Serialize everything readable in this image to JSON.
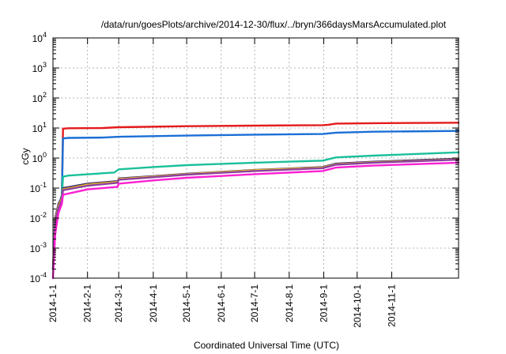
{
  "chart_data": {
    "type": "line",
    "title": "/data/run/goesPlots/archive/2014-12-30/flux/../bryn/366daysMarsAccumulated.plot",
    "xlabel": "Coordinated Universal Time (UTC)",
    "ylabel": "cGy",
    "xlim": [
      "2014-01-01",
      "2014-12-31"
    ],
    "ylim": [
      0.0001,
      10000
    ],
    "yscale": "log",
    "grid": true,
    "x_ticks": [
      "2014-1-1",
      "2014-2-1",
      "2014-3-1",
      "2014-4-1",
      "2014-5-1",
      "2014-6-1",
      "2014-7-1",
      "2014-8-1",
      "2014-9-1",
      "2014-10-1",
      "2014-11-1"
    ],
    "y_ticks": [
      {
        "value": 0.0001,
        "base": "10",
        "exp": "-4"
      },
      {
        "value": 0.001,
        "base": "10",
        "exp": "-3"
      },
      {
        "value": 0.01,
        "base": "10",
        "exp": "-2"
      },
      {
        "value": 0.1,
        "base": "10",
        "exp": "-1"
      },
      {
        "value": 1,
        "base": "10",
        "exp": "0"
      },
      {
        "value": 10,
        "base": "10",
        "exp": "1"
      },
      {
        "value": 100,
        "base": "10",
        "exp": "2"
      },
      {
        "value": 1000,
        "base": "10",
        "exp": "3"
      },
      {
        "value": 10000,
        "base": "10",
        "exp": "4"
      }
    ],
    "series": [
      {
        "color": "#e41a1c",
        "points": [
          [
            "2014-01-01",
            0.0002
          ],
          [
            "2014-01-03",
            0.003
          ],
          [
            "2014-01-06",
            0.02
          ],
          [
            "2014-01-09",
            0.06
          ],
          [
            "2014-01-10",
            9.5
          ],
          [
            "2014-01-15",
            9.8
          ],
          [
            "2014-02-15",
            10.0
          ],
          [
            "2014-03-01",
            10.6
          ],
          [
            "2014-05-01",
            11.5
          ],
          [
            "2014-07-01",
            12.0
          ],
          [
            "2014-08-31",
            12.4
          ],
          [
            "2014-09-05",
            12.8
          ],
          [
            "2014-09-12",
            14.0
          ],
          [
            "2014-10-15",
            14.5
          ],
          [
            "2014-12-31",
            15.0
          ]
        ]
      },
      {
        "color": "#1a6fd6",
        "points": [
          [
            "2014-01-01",
            0.0002
          ],
          [
            "2014-01-03",
            0.003
          ],
          [
            "2014-01-06",
            0.02
          ],
          [
            "2014-01-09",
            0.06
          ],
          [
            "2014-01-10",
            4.5
          ],
          [
            "2014-01-15",
            4.7
          ],
          [
            "2014-02-15",
            4.8
          ],
          [
            "2014-03-01",
            5.1
          ],
          [
            "2014-05-01",
            5.6
          ],
          [
            "2014-07-01",
            6.0
          ],
          [
            "2014-08-31",
            6.3
          ],
          [
            "2014-09-12",
            7.0
          ],
          [
            "2014-10-15",
            7.5
          ],
          [
            "2014-12-31",
            8.0
          ]
        ]
      },
      {
        "color": "#1abf9a",
        "points": [
          [
            "2014-01-01",
            0.0002
          ],
          [
            "2014-01-03",
            0.005
          ],
          [
            "2014-01-06",
            0.02
          ],
          [
            "2014-01-09",
            0.05
          ],
          [
            "2014-01-10",
            0.24
          ],
          [
            "2014-01-15",
            0.26
          ],
          [
            "2014-02-25",
            0.33
          ],
          [
            "2014-03-01",
            0.42
          ],
          [
            "2014-04-01",
            0.5
          ],
          [
            "2014-05-01",
            0.58
          ],
          [
            "2014-07-01",
            0.7
          ],
          [
            "2014-08-31",
            0.82
          ],
          [
            "2014-09-12",
            1.05
          ],
          [
            "2014-10-15",
            1.2
          ],
          [
            "2014-12-31",
            1.55
          ]
        ]
      },
      {
        "color": "#3a2a70",
        "points": [
          [
            "2014-01-01",
            0.0002
          ],
          [
            "2014-01-03",
            0.01
          ],
          [
            "2014-01-06",
            0.03
          ],
          [
            "2014-01-09",
            0.05
          ],
          [
            "2014-01-10",
            0.1
          ],
          [
            "2014-02-01",
            0.14
          ],
          [
            "2014-02-28",
            0.17
          ],
          [
            "2014-03-01",
            0.21
          ],
          [
            "2014-04-01",
            0.25
          ],
          [
            "2014-05-01",
            0.3
          ],
          [
            "2014-07-01",
            0.4
          ],
          [
            "2014-08-31",
            0.5
          ],
          [
            "2014-09-12",
            0.65
          ],
          [
            "2014-10-15",
            0.75
          ],
          [
            "2014-12-31",
            0.95
          ]
        ]
      },
      {
        "color": "#f0c419",
        "points": [
          [
            "2014-01-01",
            0.0002
          ],
          [
            "2014-01-03",
            0.008
          ],
          [
            "2014-01-06",
            0.025
          ],
          [
            "2014-01-09",
            0.045
          ],
          [
            "2014-01-10",
            0.09
          ],
          [
            "2014-02-01",
            0.13
          ],
          [
            "2014-02-28",
            0.16
          ],
          [
            "2014-03-01",
            0.2
          ],
          [
            "2014-04-01",
            0.24
          ],
          [
            "2014-05-01",
            0.29
          ],
          [
            "2014-07-01",
            0.39
          ],
          [
            "2014-08-31",
            0.48
          ],
          [
            "2014-09-12",
            0.62
          ],
          [
            "2014-10-15",
            0.72
          ],
          [
            "2014-12-31",
            0.9
          ]
        ]
      },
      {
        "color": "#8c3fa0",
        "points": [
          [
            "2014-01-01",
            0.0002
          ],
          [
            "2014-01-03",
            0.007
          ],
          [
            "2014-01-06",
            0.022
          ],
          [
            "2014-01-09",
            0.04
          ],
          [
            "2014-01-10",
            0.085
          ],
          [
            "2014-02-01",
            0.12
          ],
          [
            "2014-02-28",
            0.15
          ],
          [
            "2014-03-01",
            0.19
          ],
          [
            "2014-04-01",
            0.23
          ],
          [
            "2014-05-01",
            0.28
          ],
          [
            "2014-07-01",
            0.37
          ],
          [
            "2014-08-31",
            0.46
          ],
          [
            "2014-09-12",
            0.6
          ],
          [
            "2014-10-15",
            0.7
          ],
          [
            "2014-12-31",
            0.88
          ]
        ]
      },
      {
        "color": "#ff1fd2",
        "points": [
          [
            "2014-01-01",
            0.0001
          ],
          [
            "2014-01-03",
            0.003
          ],
          [
            "2014-01-06",
            0.015
          ],
          [
            "2014-01-09",
            0.03
          ],
          [
            "2014-01-10",
            0.06
          ],
          [
            "2014-02-01",
            0.09
          ],
          [
            "2014-02-28",
            0.11
          ],
          [
            "2014-03-01",
            0.14
          ],
          [
            "2014-04-01",
            0.18
          ],
          [
            "2014-05-01",
            0.22
          ],
          [
            "2014-07-01",
            0.29
          ],
          [
            "2014-08-31",
            0.37
          ],
          [
            "2014-09-12",
            0.48
          ],
          [
            "2014-10-15",
            0.56
          ],
          [
            "2014-12-31",
            0.7
          ]
        ]
      }
    ]
  }
}
